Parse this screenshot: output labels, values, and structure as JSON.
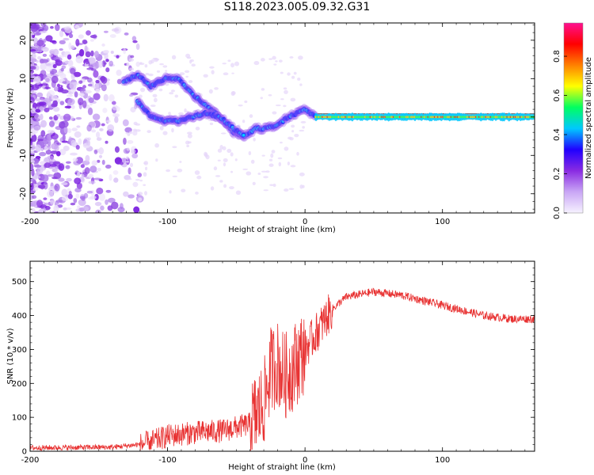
{
  "title": "S118.2023.005.09.32.G31",
  "chart_data": [
    {
      "type": "heatmap",
      "xlabel": "Height of straight line (km)",
      "ylabel": "Frequency (Hz)",
      "xlim": [
        -200,
        167
      ],
      "ylim": [
        -25,
        24.5
      ],
      "xticks": [
        -200,
        -100,
        0,
        100
      ],
      "yticks": [
        -20,
        -10,
        0,
        10,
        20
      ],
      "colorbar": {
        "label": "Normalized spectral amplitude",
        "range": [
          0,
          0.97
        ],
        "ticks": [
          0.0,
          0.2,
          0.4,
          0.6,
          0.8
        ],
        "colors": [
          "#f6f2ff",
          "#c9a6f5",
          "#8a2be2",
          "#2000ff",
          "#00c8ff",
          "#00ff60",
          "#ffff00",
          "#ff8000",
          "#ff0000",
          "#ff1090"
        ]
      },
      "ridges": [
        {
          "name": "",
          "x": [
            -132,
            -122,
            -112,
            -102,
            -92,
            -82,
            -72,
            -62,
            -52,
            -44,
            -36,
            -28,
            -20,
            -12,
            -6,
            0,
            4,
            8
          ],
          "y": [
            9,
            11,
            8,
            10,
            10,
            6,
            3,
            0,
            -4,
            -5,
            -3,
            -3,
            -2,
            0,
            1,
            2,
            1,
            0
          ]
        },
        {
          "name": "",
          "x": [
            -122,
            -112,
            -102,
            -92,
            -82,
            -72,
            -62,
            -52,
            -44
          ],
          "y": [
            4,
            0,
            -1,
            -1,
            0,
            1,
            0,
            -3,
            -5
          ]
        },
        {
          "name": "",
          "x": [
            8,
            20,
            40,
            60,
            80,
            100,
            120,
            140,
            167
          ],
          "y": [
            0,
            0,
            0,
            0,
            0,
            0,
            0,
            0,
            0
          ]
        }
      ]
    },
    {
      "type": "line",
      "xlabel": "Height of straight line (km)",
      "ylabel": "SNR (10 * v/v)",
      "xlim": [
        -200,
        167
      ],
      "ylim": [
        0,
        560
      ],
      "xticks": [
        -200,
        -100,
        0,
        100
      ],
      "yticks": [
        0,
        100,
        200,
        300,
        400,
        500
      ],
      "color": "#e83232",
      "envelope": {
        "x": [
          -200,
          -140,
          -120,
          -110,
          -100,
          -80,
          -60,
          -40,
          -30,
          -25,
          -20,
          -15,
          -10,
          0,
          10,
          20,
          30,
          50,
          70,
          90,
          110,
          130,
          150,
          167
        ],
        "y": [
          10,
          12,
          20,
          30,
          45,
          55,
          60,
          80,
          140,
          240,
          260,
          220,
          240,
          300,
          360,
          420,
          455,
          470,
          460,
          440,
          420,
          400,
          390,
          390
        ]
      }
    }
  ]
}
